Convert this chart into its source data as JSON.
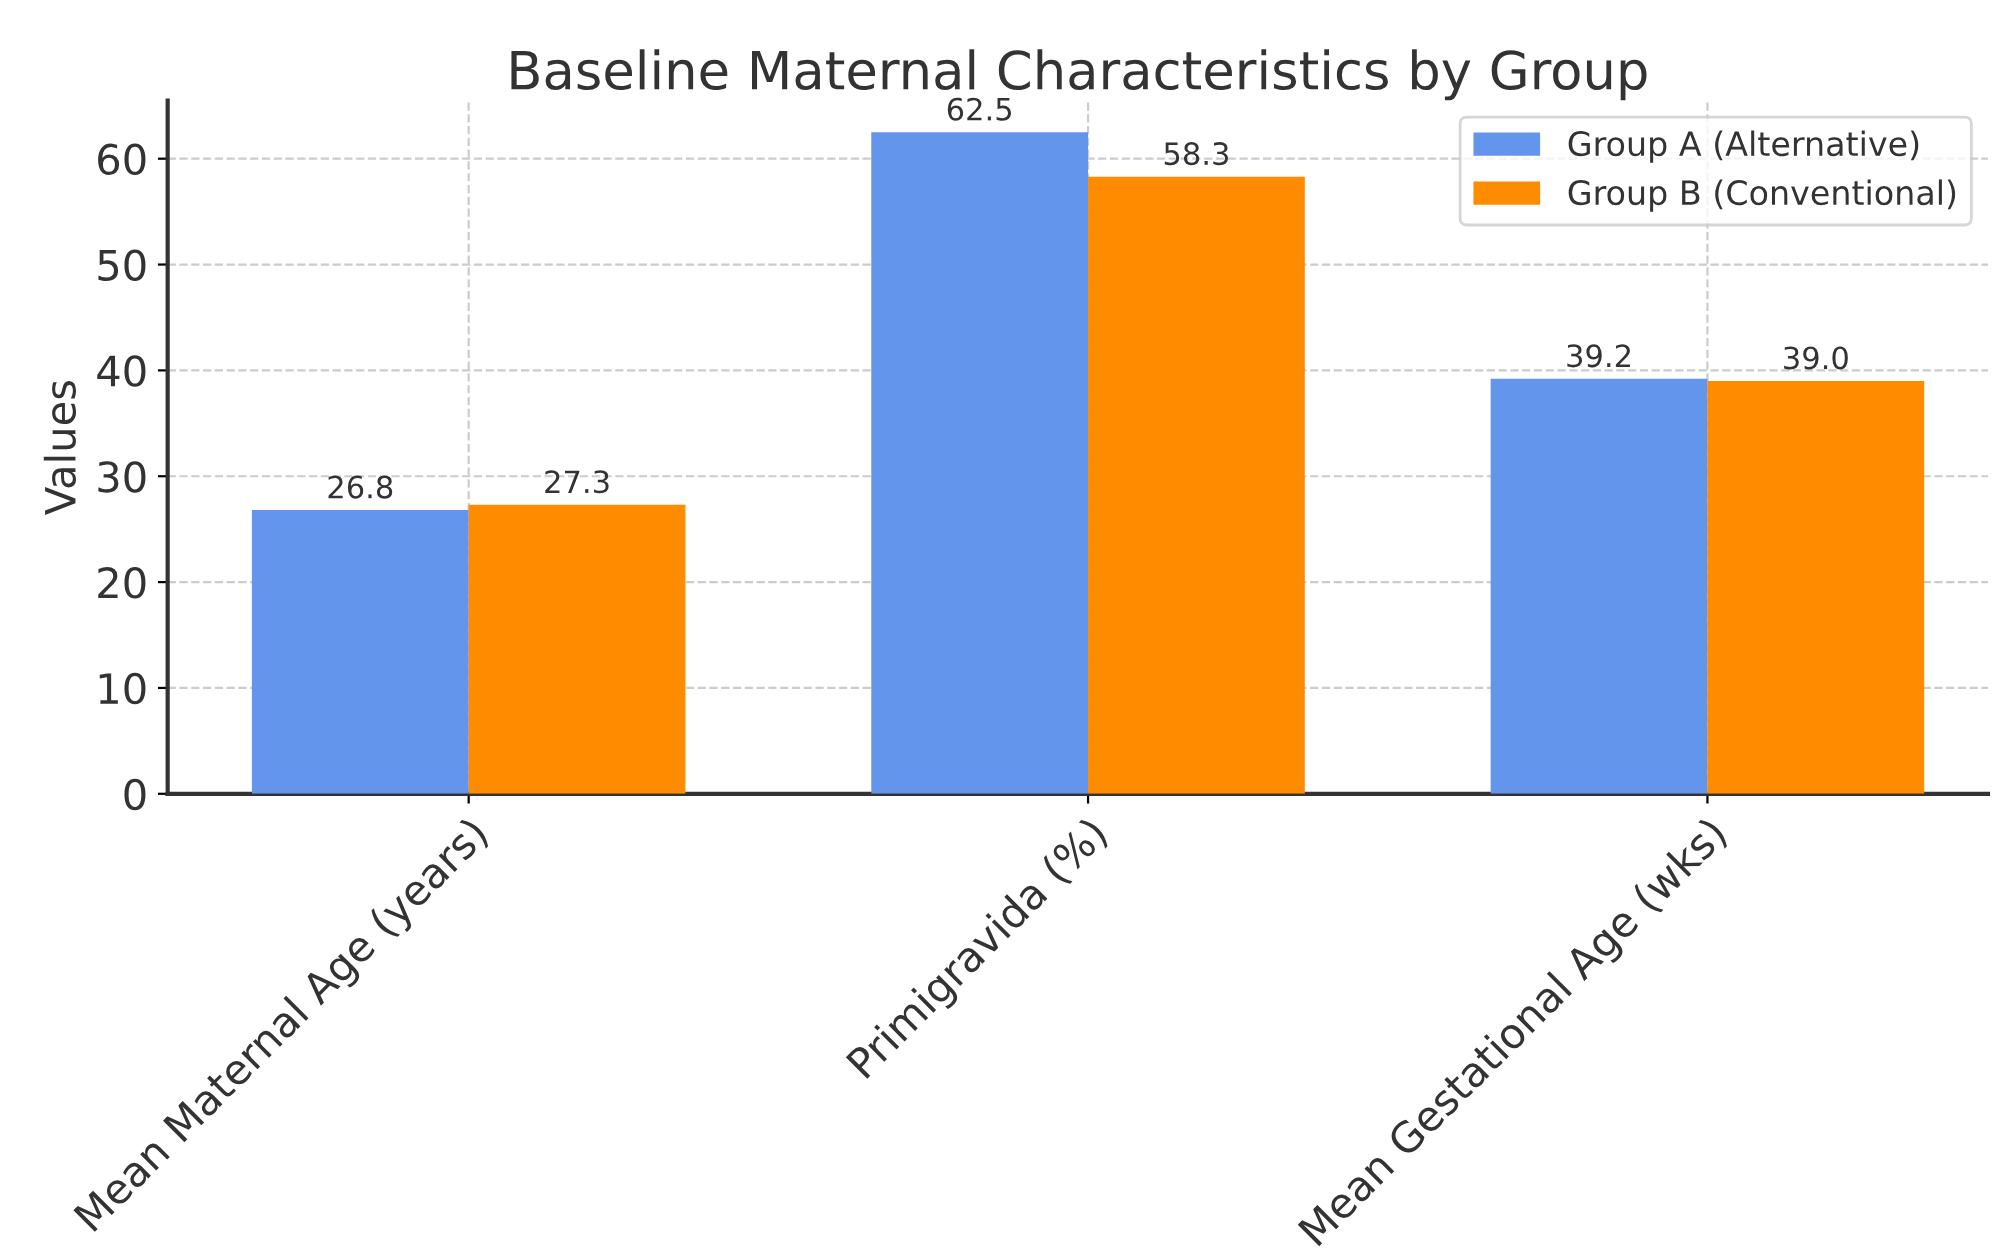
{
  "chart_data": {
    "type": "bar",
    "title": "Baseline Maternal Characteristics by Group",
    "ylabel": "Values",
    "categories": [
      "Mean Maternal Age (years)",
      "Primigravida (%)",
      "Mean Gestational Age (wks)"
    ],
    "series": [
      {
        "name": "Group A (Alternative)",
        "color": "#6495ed",
        "values": [
          26.8,
          62.5,
          39.2
        ],
        "value_labels": [
          "26.8",
          "62.5",
          "39.2"
        ]
      },
      {
        "name": "Group B (Conventional)",
        "color": "#ff8c00",
        "values": [
          27.3,
          58.3,
          39.0
        ],
        "value_labels": [
          "27.3",
          "58.3",
          "39.0"
        ]
      }
    ],
    "ylim": [
      0,
      65.5
    ],
    "yticks": [
      0,
      10,
      20,
      30,
      40,
      50,
      60
    ],
    "grid": true,
    "legend": "top right"
  }
}
